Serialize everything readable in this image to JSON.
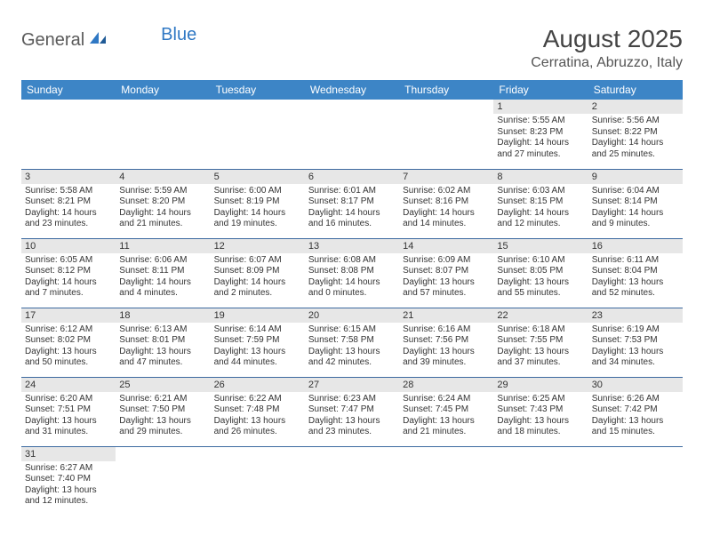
{
  "logo": {
    "text1": "General",
    "text2": "Blue"
  },
  "title": "August 2025",
  "location": "Cerratina, Abruzzo, Italy",
  "colors": {
    "header_bg": "#3d85c6",
    "header_text": "#ffffff",
    "daynum_bg": "#e7e7e7",
    "row_border": "#3d6aa0",
    "logo_gray": "#5a5a5a",
    "logo_blue": "#2f78c4"
  },
  "weekdays": [
    "Sunday",
    "Monday",
    "Tuesday",
    "Wednesday",
    "Thursday",
    "Friday",
    "Saturday"
  ],
  "weeks": [
    [
      null,
      null,
      null,
      null,
      null,
      {
        "n": "1",
        "sr": "5:55 AM",
        "ss": "8:23 PM",
        "dl": "14 hours and 27 minutes."
      },
      {
        "n": "2",
        "sr": "5:56 AM",
        "ss": "8:22 PM",
        "dl": "14 hours and 25 minutes."
      }
    ],
    [
      {
        "n": "3",
        "sr": "5:58 AM",
        "ss": "8:21 PM",
        "dl": "14 hours and 23 minutes."
      },
      {
        "n": "4",
        "sr": "5:59 AM",
        "ss": "8:20 PM",
        "dl": "14 hours and 21 minutes."
      },
      {
        "n": "5",
        "sr": "6:00 AM",
        "ss": "8:19 PM",
        "dl": "14 hours and 19 minutes."
      },
      {
        "n": "6",
        "sr": "6:01 AM",
        "ss": "8:17 PM",
        "dl": "14 hours and 16 minutes."
      },
      {
        "n": "7",
        "sr": "6:02 AM",
        "ss": "8:16 PM",
        "dl": "14 hours and 14 minutes."
      },
      {
        "n": "8",
        "sr": "6:03 AM",
        "ss": "8:15 PM",
        "dl": "14 hours and 12 minutes."
      },
      {
        "n": "9",
        "sr": "6:04 AM",
        "ss": "8:14 PM",
        "dl": "14 hours and 9 minutes."
      }
    ],
    [
      {
        "n": "10",
        "sr": "6:05 AM",
        "ss": "8:12 PM",
        "dl": "14 hours and 7 minutes."
      },
      {
        "n": "11",
        "sr": "6:06 AM",
        "ss": "8:11 PM",
        "dl": "14 hours and 4 minutes."
      },
      {
        "n": "12",
        "sr": "6:07 AM",
        "ss": "8:09 PM",
        "dl": "14 hours and 2 minutes."
      },
      {
        "n": "13",
        "sr": "6:08 AM",
        "ss": "8:08 PM",
        "dl": "14 hours and 0 minutes."
      },
      {
        "n": "14",
        "sr": "6:09 AM",
        "ss": "8:07 PM",
        "dl": "13 hours and 57 minutes."
      },
      {
        "n": "15",
        "sr": "6:10 AM",
        "ss": "8:05 PM",
        "dl": "13 hours and 55 minutes."
      },
      {
        "n": "16",
        "sr": "6:11 AM",
        "ss": "8:04 PM",
        "dl": "13 hours and 52 minutes."
      }
    ],
    [
      {
        "n": "17",
        "sr": "6:12 AM",
        "ss": "8:02 PM",
        "dl": "13 hours and 50 minutes."
      },
      {
        "n": "18",
        "sr": "6:13 AM",
        "ss": "8:01 PM",
        "dl": "13 hours and 47 minutes."
      },
      {
        "n": "19",
        "sr": "6:14 AM",
        "ss": "7:59 PM",
        "dl": "13 hours and 44 minutes."
      },
      {
        "n": "20",
        "sr": "6:15 AM",
        "ss": "7:58 PM",
        "dl": "13 hours and 42 minutes."
      },
      {
        "n": "21",
        "sr": "6:16 AM",
        "ss": "7:56 PM",
        "dl": "13 hours and 39 minutes."
      },
      {
        "n": "22",
        "sr": "6:18 AM",
        "ss": "7:55 PM",
        "dl": "13 hours and 37 minutes."
      },
      {
        "n": "23",
        "sr": "6:19 AM",
        "ss": "7:53 PM",
        "dl": "13 hours and 34 minutes."
      }
    ],
    [
      {
        "n": "24",
        "sr": "6:20 AM",
        "ss": "7:51 PM",
        "dl": "13 hours and 31 minutes."
      },
      {
        "n": "25",
        "sr": "6:21 AM",
        "ss": "7:50 PM",
        "dl": "13 hours and 29 minutes."
      },
      {
        "n": "26",
        "sr": "6:22 AM",
        "ss": "7:48 PM",
        "dl": "13 hours and 26 minutes."
      },
      {
        "n": "27",
        "sr": "6:23 AM",
        "ss": "7:47 PM",
        "dl": "13 hours and 23 minutes."
      },
      {
        "n": "28",
        "sr": "6:24 AM",
        "ss": "7:45 PM",
        "dl": "13 hours and 21 minutes."
      },
      {
        "n": "29",
        "sr": "6:25 AM",
        "ss": "7:43 PM",
        "dl": "13 hours and 18 minutes."
      },
      {
        "n": "30",
        "sr": "6:26 AM",
        "ss": "7:42 PM",
        "dl": "13 hours and 15 minutes."
      }
    ],
    [
      {
        "n": "31",
        "sr": "6:27 AM",
        "ss": "7:40 PM",
        "dl": "13 hours and 12 minutes."
      },
      null,
      null,
      null,
      null,
      null,
      null
    ]
  ],
  "labels": {
    "sunrise": "Sunrise:",
    "sunset": "Sunset:",
    "daylight": "Daylight:"
  }
}
